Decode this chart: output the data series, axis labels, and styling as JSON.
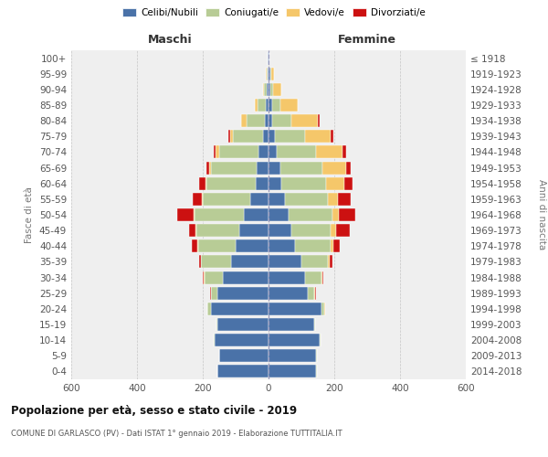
{
  "age_groups": [
    "0-4",
    "5-9",
    "10-14",
    "15-19",
    "20-24",
    "25-29",
    "30-34",
    "35-39",
    "40-44",
    "45-49",
    "50-54",
    "55-59",
    "60-64",
    "65-69",
    "70-74",
    "75-79",
    "80-84",
    "85-89",
    "90-94",
    "95-99",
    "100+"
  ],
  "birth_years": [
    "2014-2018",
    "2009-2013",
    "2004-2008",
    "1999-2003",
    "1994-1998",
    "1989-1993",
    "1984-1988",
    "1979-1983",
    "1974-1978",
    "1969-1973",
    "1964-1968",
    "1959-1963",
    "1954-1958",
    "1949-1953",
    "1944-1948",
    "1939-1943",
    "1934-1938",
    "1929-1933",
    "1924-1928",
    "1919-1923",
    "≤ 1918"
  ],
  "maschi": {
    "celibi": [
      155,
      150,
      165,
      155,
      175,
      155,
      140,
      115,
      100,
      90,
      75,
      55,
      40,
      35,
      30,
      18,
      12,
      8,
      5,
      3,
      2
    ],
    "coniugati": [
      1,
      1,
      2,
      2,
      10,
      20,
      55,
      90,
      115,
      130,
      150,
      145,
      150,
      140,
      120,
      90,
      55,
      25,
      8,
      3,
      0
    ],
    "vedovi": [
      0,
      0,
      0,
      0,
      0,
      1,
      1,
      1,
      2,
      2,
      2,
      2,
      3,
      5,
      10,
      10,
      15,
      10,
      5,
      2,
      0
    ],
    "divorziati": [
      0,
      0,
      0,
      0,
      1,
      2,
      3,
      5,
      15,
      20,
      52,
      28,
      18,
      10,
      8,
      5,
      2,
      0,
      0,
      0,
      0
    ]
  },
  "femmine": {
    "nubili": [
      145,
      145,
      155,
      140,
      160,
      120,
      110,
      100,
      80,
      70,
      60,
      50,
      40,
      35,
      25,
      20,
      10,
      10,
      5,
      5,
      2
    ],
    "coniugate": [
      1,
      1,
      2,
      2,
      10,
      20,
      50,
      80,
      110,
      120,
      135,
      130,
      135,
      130,
      120,
      90,
      60,
      25,
      10,
      3,
      0
    ],
    "vedove": [
      0,
      0,
      0,
      0,
      1,
      2,
      3,
      5,
      8,
      15,
      20,
      30,
      55,
      70,
      80,
      80,
      80,
      55,
      25,
      8,
      0
    ],
    "divorziate": [
      0,
      0,
      0,
      0,
      1,
      2,
      5,
      10,
      20,
      42,
      48,
      40,
      25,
      15,
      10,
      8,
      5,
      0,
      0,
      0,
      0
    ]
  },
  "colors": {
    "celibi": "#4a72a8",
    "coniugati": "#b8cc96",
    "vedovi": "#f5c76a",
    "divorziati": "#cc1111"
  },
  "xlim": 600,
  "title": "Popolazione per età, sesso e stato civile - 2019",
  "subtitle": "COMUNE DI GARLASCO (PV) - Dati ISTAT 1° gennaio 2019 - Elaborazione TUTTITALIA.IT",
  "ylabel_left": "Fasce di età",
  "ylabel_right": "Anni di nascita",
  "xlabel_left": "Maschi",
  "xlabel_right": "Femmine",
  "bg_color": "#efefef"
}
